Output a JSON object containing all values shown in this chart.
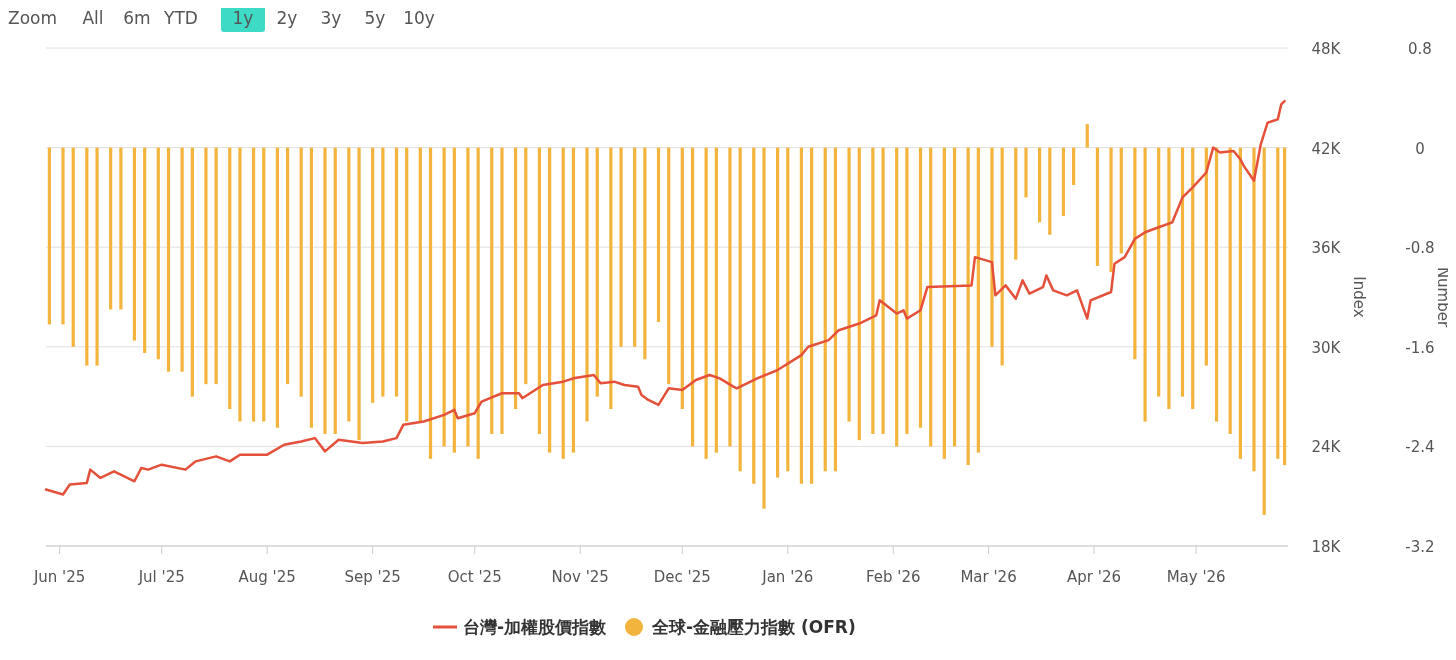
{
  "chart_data": {
    "type": "line",
    "ylabel": "Index",
    "y2label": "Number",
    "annotations": [
      "Zoom",
      "All",
      "6m",
      "YTD",
      "1y",
      "2y",
      "3y",
      "5y",
      "10y"
    ],
    "xlim": [
      "2025-05-28",
      "2026-05-28"
    ],
    "xticks": [
      {
        "value": "2025-06-01",
        "label": "Jun '25"
      },
      {
        "value": "2025-07-01",
        "label": "Jul '25"
      },
      {
        "value": "2025-08-01",
        "label": "Aug '25"
      },
      {
        "value": "2025-09-01",
        "label": "Sep '25"
      },
      {
        "value": "2025-10-01",
        "label": "Oct '25"
      },
      {
        "value": "2025-11-01",
        "label": "Nov '25"
      },
      {
        "value": "2025-12-01",
        "label": "Dec '25"
      },
      {
        "value": "2026-01-01",
        "label": "Jan '26"
      },
      {
        "value": "2026-02-01",
        "label": "Feb '26"
      },
      {
        "value": "2026-03-01",
        "label": "Mar '26"
      },
      {
        "value": "2026-04-01",
        "label": "Apr '26"
      },
      {
        "value": "2026-05-01",
        "label": "May '26"
      }
    ],
    "ylim": [
      18000,
      48000
    ],
    "yticks": [
      {
        "value": 18000,
        "label": "18K"
      },
      {
        "value": 24000,
        "label": "24K"
      },
      {
        "value": 30000,
        "label": "30K"
      },
      {
        "value": 36000,
        "label": "36K"
      },
      {
        "value": 42000,
        "label": "42K"
      },
      {
        "value": 48000,
        "label": "48K"
      }
    ],
    "y2lim": [
      -3.2,
      0.8
    ],
    "y2ticks": [
      -3.2,
      -2.4,
      -1.6,
      -0.8,
      0,
      0.8
    ],
    "grid": "y",
    "legend": "bottom",
    "marker": "none",
    "line_style": "solid",
    "series": [
      {
        "name": "全球-金融壓力指數 (OFR)",
        "type": "bar",
        "axis": "y2",
        "color": "#f2b43c",
        "x": [
          "2025-05-29",
          "2025-06-02",
          "2025-06-05",
          "2025-06-09",
          "2025-06-12",
          "2025-06-16",
          "2025-06-19",
          "2025-06-23",
          "2025-06-26",
          "2025-06-30",
          "2025-07-03",
          "2025-07-07",
          "2025-07-10",
          "2025-07-14",
          "2025-07-17",
          "2025-07-21",
          "2025-07-24",
          "2025-07-28",
          "2025-07-31",
          "2025-08-04",
          "2025-08-07",
          "2025-08-11",
          "2025-08-14",
          "2025-08-18",
          "2025-08-21",
          "2025-08-25",
          "2025-08-28",
          "2025-09-01",
          "2025-09-04",
          "2025-09-08",
          "2025-09-11",
          "2025-09-15",
          "2025-09-18",
          "2025-09-22",
          "2025-09-25",
          "2025-09-29",
          "2025-10-02",
          "2025-10-06",
          "2025-10-09",
          "2025-10-13",
          "2025-10-16",
          "2025-10-20",
          "2025-10-23",
          "2025-10-27",
          "2025-10-30",
          "2025-11-03",
          "2025-11-06",
          "2025-11-10",
          "2025-11-13",
          "2025-11-17",
          "2025-11-20",
          "2025-11-24",
          "2025-11-27",
          "2025-12-01",
          "2025-12-04",
          "2025-12-08",
          "2025-12-11",
          "2025-12-15",
          "2025-12-18",
          "2025-12-22",
          "2025-12-25",
          "2025-12-29",
          "2026-01-01",
          "2026-01-05",
          "2026-01-08",
          "2026-01-12",
          "2026-01-15",
          "2026-01-19",
          "2026-01-22",
          "2026-01-26",
          "2026-01-29",
          "2026-02-02",
          "2026-02-05",
          "2026-02-09",
          "2026-02-12",
          "2026-02-16",
          "2026-02-19",
          "2026-02-23",
          "2026-02-26",
          "2026-03-02",
          "2026-03-05",
          "2026-03-09",
          "2026-03-12",
          "2026-03-16",
          "2026-03-19",
          "2026-03-23",
          "2026-03-26",
          "2026-03-30",
          "2026-04-02",
          "2026-04-06",
          "2026-04-09",
          "2026-04-13",
          "2026-04-16",
          "2026-04-20",
          "2026-04-23",
          "2026-04-27",
          "2026-04-30",
          "2026-05-04",
          "2026-05-07",
          "2026-05-11",
          "2026-05-14",
          "2026-05-18",
          "2026-05-21",
          "2026-05-25",
          "2026-05-27"
        ],
        "values": [
          -1.42,
          -1.42,
          -1.6,
          -1.75,
          -1.75,
          -1.3,
          -1.3,
          -1.55,
          -1.65,
          -1.7,
          -1.8,
          -1.8,
          -2.0,
          -1.9,
          -1.9,
          -2.1,
          -2.2,
          -2.2,
          -2.2,
          -2.25,
          -1.9,
          -2.0,
          -2.25,
          -2.3,
          -2.3,
          -2.2,
          -2.35,
          -2.05,
          -2.0,
          -2.0,
          -2.2,
          -2.2,
          -2.5,
          -2.4,
          -2.45,
          -2.4,
          -2.5,
          -2.3,
          -2.3,
          -2.1,
          -1.9,
          -2.3,
          -2.45,
          -2.5,
          -2.45,
          -2.2,
          -2.0,
          -2.1,
          -1.6,
          -1.6,
          -1.7,
          -1.4,
          -1.9,
          -2.1,
          -2.4,
          -2.5,
          -2.45,
          -2.4,
          -2.6,
          -2.7,
          -2.9,
          -2.65,
          -2.6,
          -2.7,
          -2.7,
          -2.6,
          -2.6,
          -2.2,
          -2.35,
          -2.3,
          -2.3,
          -2.4,
          -2.3,
          -2.25,
          -2.4,
          -2.5,
          -2.4,
          -2.55,
          -2.45,
          -1.6,
          -1.75,
          -0.9,
          -0.4,
          -0.6,
          -0.7,
          -0.55,
          -0.3,
          0.19,
          -0.95,
          -1.0,
          -0.85,
          -1.7,
          -2.2,
          -2.0,
          -2.1,
          -2.0,
          -2.1,
          -1.75,
          -2.2,
          -2.3,
          -2.5,
          -2.6,
          -2.95,
          -2.5,
          -2.55
        ]
      },
      {
        "name": "台灣-加權股價指數",
        "color": "#e4503a",
        "x": [
          "2025-05-28",
          "2025-06-02",
          "2025-06-04",
          "2025-06-09",
          "2025-06-10",
          "2025-06-13",
          "2025-06-17",
          "2025-06-23",
          "2025-06-25",
          "2025-06-27",
          "2025-07-01",
          "2025-07-08",
          "2025-07-11",
          "2025-07-17",
          "2025-07-21",
          "2025-07-24",
          "2025-08-01",
          "2025-08-06",
          "2025-08-11",
          "2025-08-15",
          "2025-08-18",
          "2025-08-22",
          "2025-08-29",
          "2025-09-04",
          "2025-09-08",
          "2025-09-10",
          "2025-09-16",
          "2025-09-22",
          "2025-09-25",
          "2025-09-26",
          "2025-10-01",
          "2025-10-03",
          "2025-10-09",
          "2025-10-14",
          "2025-10-15",
          "2025-10-21",
          "2025-10-27",
          "2025-10-30",
          "2025-11-05",
          "2025-11-07",
          "2025-11-11",
          "2025-11-14",
          "2025-11-18",
          "2025-11-19",
          "2025-11-21",
          "2025-11-24",
          "2025-11-27",
          "2025-12-01",
          "2025-12-05",
          "2025-12-09",
          "2025-12-12",
          "2025-12-16",
          "2025-12-17",
          "2025-12-23",
          "2025-12-29",
          "2026-01-05",
          "2026-01-07",
          "2026-01-13",
          "2026-01-16",
          "2026-01-22",
          "2026-01-27",
          "2026-01-28",
          "2026-02-02",
          "2026-02-04",
          "2026-02-05",
          "2026-02-09",
          "2026-02-11",
          "2026-02-24",
          "2026-02-25",
          "2026-03-02",
          "2026-03-03",
          "2026-03-06",
          "2026-03-09",
          "2026-03-11",
          "2026-03-13",
          "2026-03-17",
          "2026-03-18",
          "2026-03-20",
          "2026-03-24",
          "2026-03-27",
          "2026-03-30",
          "2026-03-31",
          "2026-04-06",
          "2026-04-07",
          "2026-04-10",
          "2026-04-13",
          "2026-04-16",
          "2026-04-20",
          "2026-04-24",
          "2026-04-27",
          "2026-04-30",
          "2026-05-04",
          "2026-05-06",
          "2026-05-08",
          "2026-05-12",
          "2026-05-14",
          "2026-05-15",
          "2026-05-18",
          "2026-05-20",
          "2026-05-22",
          "2026-05-25",
          "2026-05-26",
          "2026-05-27"
        ],
        "values": [
          21400,
          21100,
          21700,
          21800,
          22600,
          22100,
          22500,
          21900,
          22700,
          22600,
          22900,
          22600,
          23100,
          23400,
          23100,
          23500,
          23500,
          24100,
          24300,
          24500,
          23700,
          24400,
          24200,
          24300,
          24500,
          25300,
          25500,
          25900,
          26200,
          25700,
          26000,
          26700,
          27200,
          27200,
          26900,
          27700,
          27900,
          28100,
          28300,
          27800,
          27900,
          27700,
          27600,
          27100,
          26800,
          26500,
          27500,
          27400,
          28000,
          28300,
          28100,
          27600,
          27500,
          28100,
          28600,
          29500,
          30000,
          30400,
          31000,
          31400,
          31900,
          32800,
          32000,
          32200,
          31700,
          32200,
          33600,
          33700,
          35400,
          35100,
          33100,
          33700,
          32900,
          34000,
          33200,
          33600,
          34300,
          33400,
          33100,
          33400,
          31700,
          32800,
          33300,
          35000,
          35400,
          36500,
          36900,
          37200,
          37500,
          39000,
          39600,
          40500,
          42000,
          41700,
          41800,
          41300,
          40900,
          40000,
          42200,
          43500,
          43700,
          44600,
          44800
        ]
      }
    ]
  }
}
